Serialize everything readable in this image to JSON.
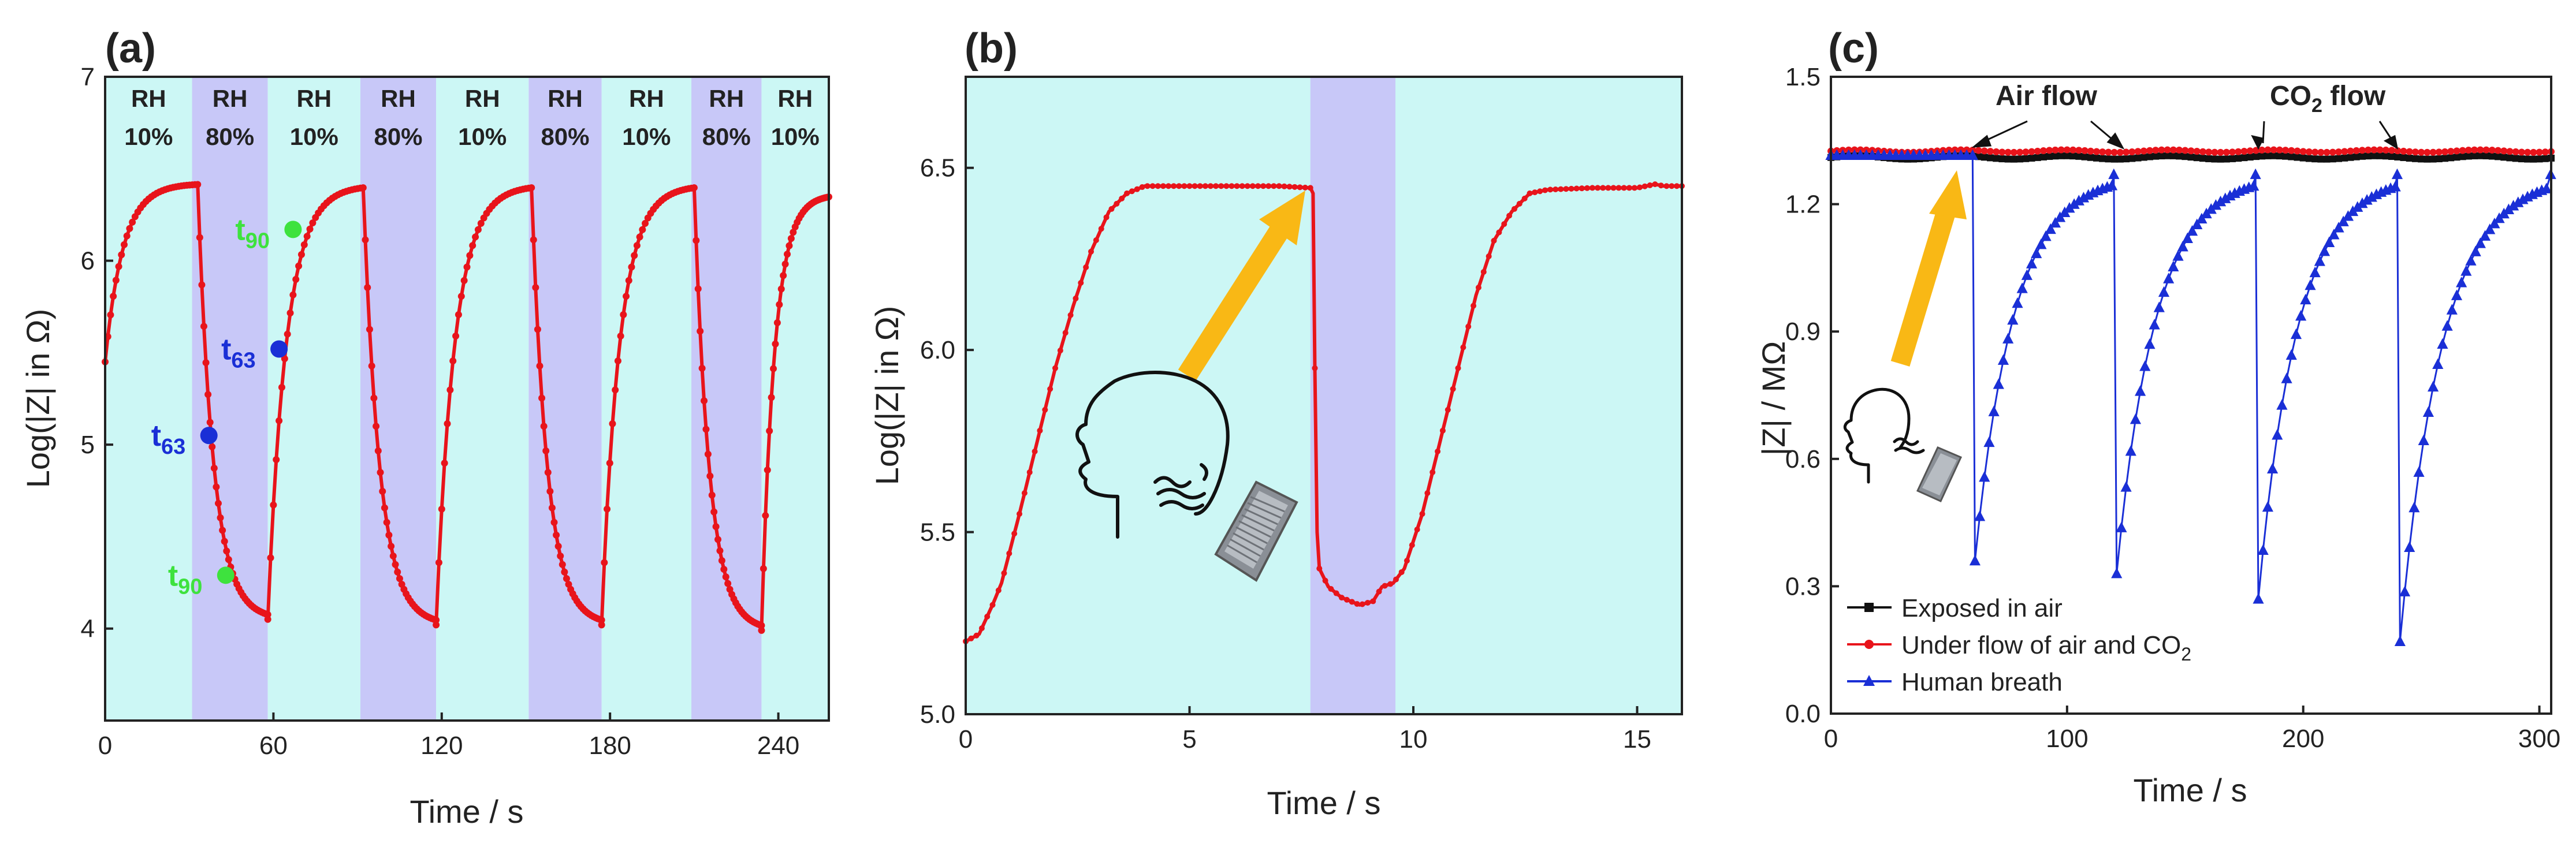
{
  "chart_data": [
    {
      "type": "line",
      "panel_label": "(a)",
      "xlabel": "Time / s",
      "ylabel": "Log(|Z| in Ω)",
      "xlim": [
        0,
        258
      ],
      "ylim": [
        3.5,
        7
      ],
      "xticks": [
        0,
        60,
        120,
        180,
        240
      ],
      "yticks": [
        4,
        5,
        6,
        7
      ],
      "xtick_labels": [
        "0",
        "60",
        "120",
        "180",
        "240"
      ],
      "ytick_labels": [
        "4",
        "5",
        "6",
        "7"
      ],
      "series_color": "#e8141b",
      "band_colors": {
        "low": "#ccf7f5",
        "high": "#c8c8f8"
      },
      "rh_regions": [
        {
          "start": 0,
          "end": 31,
          "line1": "RH",
          "line2": "10%",
          "level": "low"
        },
        {
          "start": 31,
          "end": 58,
          "line1": "RH",
          "line2": "80%",
          "level": "high"
        },
        {
          "start": 58,
          "end": 91,
          "line1": "RH",
          "line2": "10%",
          "level": "low"
        },
        {
          "start": 91,
          "end": 118,
          "line1": "RH",
          "line2": "80%",
          "level": "high"
        },
        {
          "start": 118,
          "end": 151,
          "line1": "RH",
          "line2": "10%",
          "level": "low"
        },
        {
          "start": 151,
          "end": 177,
          "line1": "RH",
          "line2": "80%",
          "level": "high"
        },
        {
          "start": 177,
          "end": 209,
          "line1": "RH",
          "line2": "10%",
          "level": "low"
        },
        {
          "start": 209,
          "end": 234,
          "line1": "RH",
          "line2": "80%",
          "level": "high"
        },
        {
          "start": 234,
          "end": 258,
          "line1": "RH",
          "line2": "10%",
          "level": "low"
        }
      ],
      "cycles": [
        {
          "dry_start": 0,
          "dry_end": 33,
          "wet_end": 58,
          "start_level": 5.45,
          "peak": 6.42,
          "trough": 4.05
        },
        {
          "dry_start": 58,
          "dry_end": 92,
          "wet_end": 118,
          "start_level": 4.05,
          "peak": 6.41,
          "trough": 4.02
        },
        {
          "dry_start": 118,
          "dry_end": 152,
          "wet_end": 177,
          "start_level": 4.02,
          "peak": 6.41,
          "trough": 4.02
        },
        {
          "dry_start": 177,
          "dry_end": 210,
          "wet_end": 234,
          "start_level": 4.02,
          "peak": 6.41,
          "trough": 3.99
        },
        {
          "dry_start": 234,
          "dry_end": 258,
          "wet_end": 258,
          "start_level": 3.99,
          "peak": 6.36,
          "trough": 3.99
        }
      ],
      "markers": [
        {
          "label": "t",
          "sub": "63",
          "x": 37,
          "y": 5.05,
          "color": "#1a2fd6"
        },
        {
          "label": "t",
          "sub": "90",
          "x": 43,
          "y": 4.29,
          "color": "#3ee23e"
        },
        {
          "label": "t",
          "sub": "63",
          "x": 62,
          "y": 5.52,
          "color": "#1a2fd6"
        },
        {
          "label": "t",
          "sub": "90",
          "x": 67,
          "y": 6.17,
          "color": "#3ee23e"
        }
      ]
    },
    {
      "type": "line",
      "panel_label": "(b)",
      "xlabel": "Time / s",
      "ylabel": "Log(|Z| in Ω)",
      "xlim": [
        0,
        16
      ],
      "ylim": [
        5.0,
        6.75
      ],
      "xticks": [
        0,
        5,
        10,
        15
      ],
      "yticks": [
        5.0,
        5.5,
        6.0,
        6.5
      ],
      "xtick_labels": [
        "0",
        "5",
        "10",
        "15"
      ],
      "ytick_labels": [
        "5.0",
        "5.5",
        "6.0",
        "6.5"
      ],
      "series_color": "#e8141b",
      "band_colors": {
        "low": "#ccf7f5",
        "high": "#c8c8f8"
      },
      "breath_band": [
        7.7,
        9.6
      ],
      "points": [
        [
          0,
          5.2
        ],
        [
          0.3,
          5.22
        ],
        [
          0.6,
          5.3
        ],
        [
          0.8,
          5.36
        ],
        [
          1.2,
          5.55
        ],
        [
          1.6,
          5.75
        ],
        [
          2.0,
          5.95
        ],
        [
          2.4,
          6.12
        ],
        [
          2.8,
          6.27
        ],
        [
          3.2,
          6.38
        ],
        [
          3.6,
          6.43
        ],
        [
          4.0,
          6.45
        ],
        [
          5.0,
          6.45
        ],
        [
          6.0,
          6.45
        ],
        [
          7.0,
          6.45
        ],
        [
          7.7,
          6.445
        ],
        [
          7.76,
          6.43
        ],
        [
          7.8,
          5.95
        ],
        [
          7.85,
          5.5
        ],
        [
          7.9,
          5.4
        ],
        [
          8.1,
          5.35
        ],
        [
          8.4,
          5.32
        ],
        [
          8.8,
          5.3
        ],
        [
          9.1,
          5.31
        ],
        [
          9.3,
          5.35
        ],
        [
          9.55,
          5.36
        ],
        [
          9.8,
          5.4
        ],
        [
          10.2,
          5.55
        ],
        [
          10.6,
          5.75
        ],
        [
          11.0,
          5.95
        ],
        [
          11.4,
          6.15
        ],
        [
          11.8,
          6.3
        ],
        [
          12.2,
          6.38
        ],
        [
          12.6,
          6.43
        ],
        [
          13.0,
          6.44
        ],
        [
          14.0,
          6.445
        ],
        [
          15.0,
          6.445
        ],
        [
          15.4,
          6.455
        ],
        [
          15.6,
          6.45
        ],
        [
          16.0,
          6.45
        ]
      ]
    },
    {
      "type": "line",
      "panel_label": "(c)",
      "xlabel": "Time / s",
      "ylabel": "|Z| / MΩ",
      "xlim": [
        0,
        305
      ],
      "ylim": [
        0.0,
        1.5
      ],
      "xticks": [
        0,
        100,
        200,
        300
      ],
      "yticks": [
        0.0,
        0.3,
        0.6,
        0.9,
        1.2,
        1.5
      ],
      "xtick_labels": [
        "0",
        "100",
        "200",
        "300"
      ],
      "ytick_labels": [
        "0.0",
        "0.3",
        "0.6",
        "0.9",
        "1.2",
        "1.5"
      ],
      "annotations": {
        "air_flow": "Air flow",
        "co2_flow_prefix": "CO",
        "co2_flow_sub": "2",
        "co2_flow_suffix": " flow"
      },
      "series": [
        {
          "name": "Exposed in air",
          "color": "#111111",
          "marker": "square",
          "level": 1.31
        },
        {
          "name": "Under flow of air and CO",
          "name_sub": "2",
          "color": "#e8141b",
          "marker": "circle",
          "level": 1.325
        },
        {
          "name": "Human breath",
          "color": "#1a2fd6",
          "marker": "triangle",
          "baseline_end": 60,
          "baseline": 1.315,
          "cycles": [
            {
              "start": 61,
              "min": 0.36,
              "end": 120,
              "recover": 1.27
            },
            {
              "start": 121,
              "min": 0.33,
              "end": 180,
              "recover": 1.27
            },
            {
              "start": 181,
              "min": 0.27,
              "end": 240,
              "recover": 1.27
            },
            {
              "start": 241,
              "min": 0.17,
              "end": 305,
              "recover": 1.27
            }
          ]
        }
      ]
    }
  ]
}
